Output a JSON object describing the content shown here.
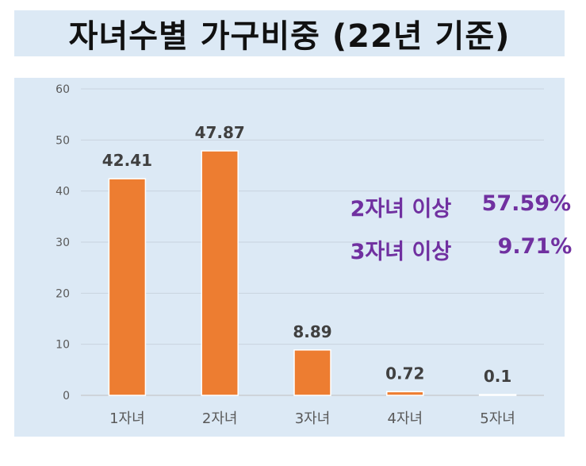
{
  "title": "자녀수별 가구비중 (22년 기준)",
  "annotations": [
    {
      "label": "2자녀 이상",
      "value": "57.59%"
    },
    {
      "label": "3자녀 이상",
      "value": "9.71%"
    }
  ],
  "colors": {
    "bar": "#ed7d31",
    "annotation": "#7030a0",
    "background": "#dce9f5"
  },
  "chart_data": {
    "type": "bar",
    "title": "자녀수별 가구비중 (22년 기준)",
    "categories": [
      "1자녀",
      "2자녀",
      "3자녀",
      "4자녀",
      "5자녀"
    ],
    "values": [
      42.41,
      47.87,
      8.89,
      0.72,
      0.1
    ],
    "data_labels": [
      "42.41",
      "47.87",
      "8.89",
      "0.72",
      "0.1"
    ],
    "yticks": [
      "0",
      "10",
      "20",
      "30",
      "40",
      "50",
      "60"
    ],
    "ylim": [
      0,
      60
    ],
    "xlabel": "",
    "ylabel": "",
    "grid": true,
    "legend": "none"
  }
}
